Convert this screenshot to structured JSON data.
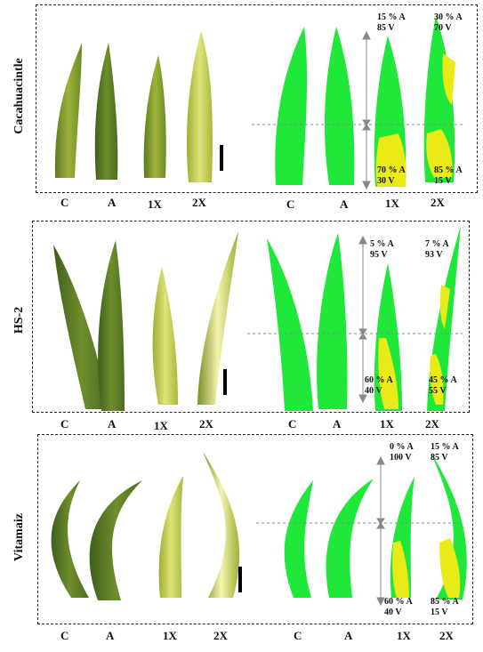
{
  "rows": [
    {
      "name": "Cacahuacintle",
      "treatments": [
        "C",
        "A",
        "1X",
        "2X"
      ],
      "analysis_labels": [
        "C",
        "A",
        "1X",
        "2X"
      ],
      "percent_top_1x": [
        "15 % A",
        "85 V"
      ],
      "percent_top_2x": [
        "30 % A",
        "70 V"
      ],
      "percent_bottom_1x": [
        "70 % A",
        "30 V"
      ],
      "percent_bottom_2x": [
        "85 % A",
        "15 V"
      ]
    },
    {
      "name": "HS-2",
      "treatments": [
        "C",
        "A",
        "1X",
        "2X"
      ],
      "analysis_labels": [
        "C",
        "A",
        "1X",
        "2X"
      ],
      "percent_top_1x": [
        "5 % A",
        "95 V"
      ],
      "percent_top_2x": [
        "7 % A",
        "93 V"
      ],
      "percent_bottom_1x": [
        "60 % A",
        "40 V"
      ],
      "percent_bottom_2x": [
        "45 % A",
        "55 V"
      ]
    },
    {
      "name": "Vitamaiz",
      "treatments": [
        "C",
        "A",
        "1X",
        "2X"
      ],
      "analysis_labels": [
        "C",
        "A",
        "1X",
        "2X"
      ],
      "percent_top_1x": [
        "0 % A",
        "100 V"
      ],
      "percent_top_2x": [
        "15 % A",
        "85 V"
      ],
      "percent_bottom_1x": [
        "60 % A",
        "40 V"
      ],
      "percent_bottom_2x": [
        "85 % A",
        "15 V"
      ]
    }
  ],
  "colors": {
    "green": "#1fe83b",
    "yellow": "#e9ea18",
    "photo_dark": "#4a6a1e",
    "photo_light": "#d8e07a"
  }
}
